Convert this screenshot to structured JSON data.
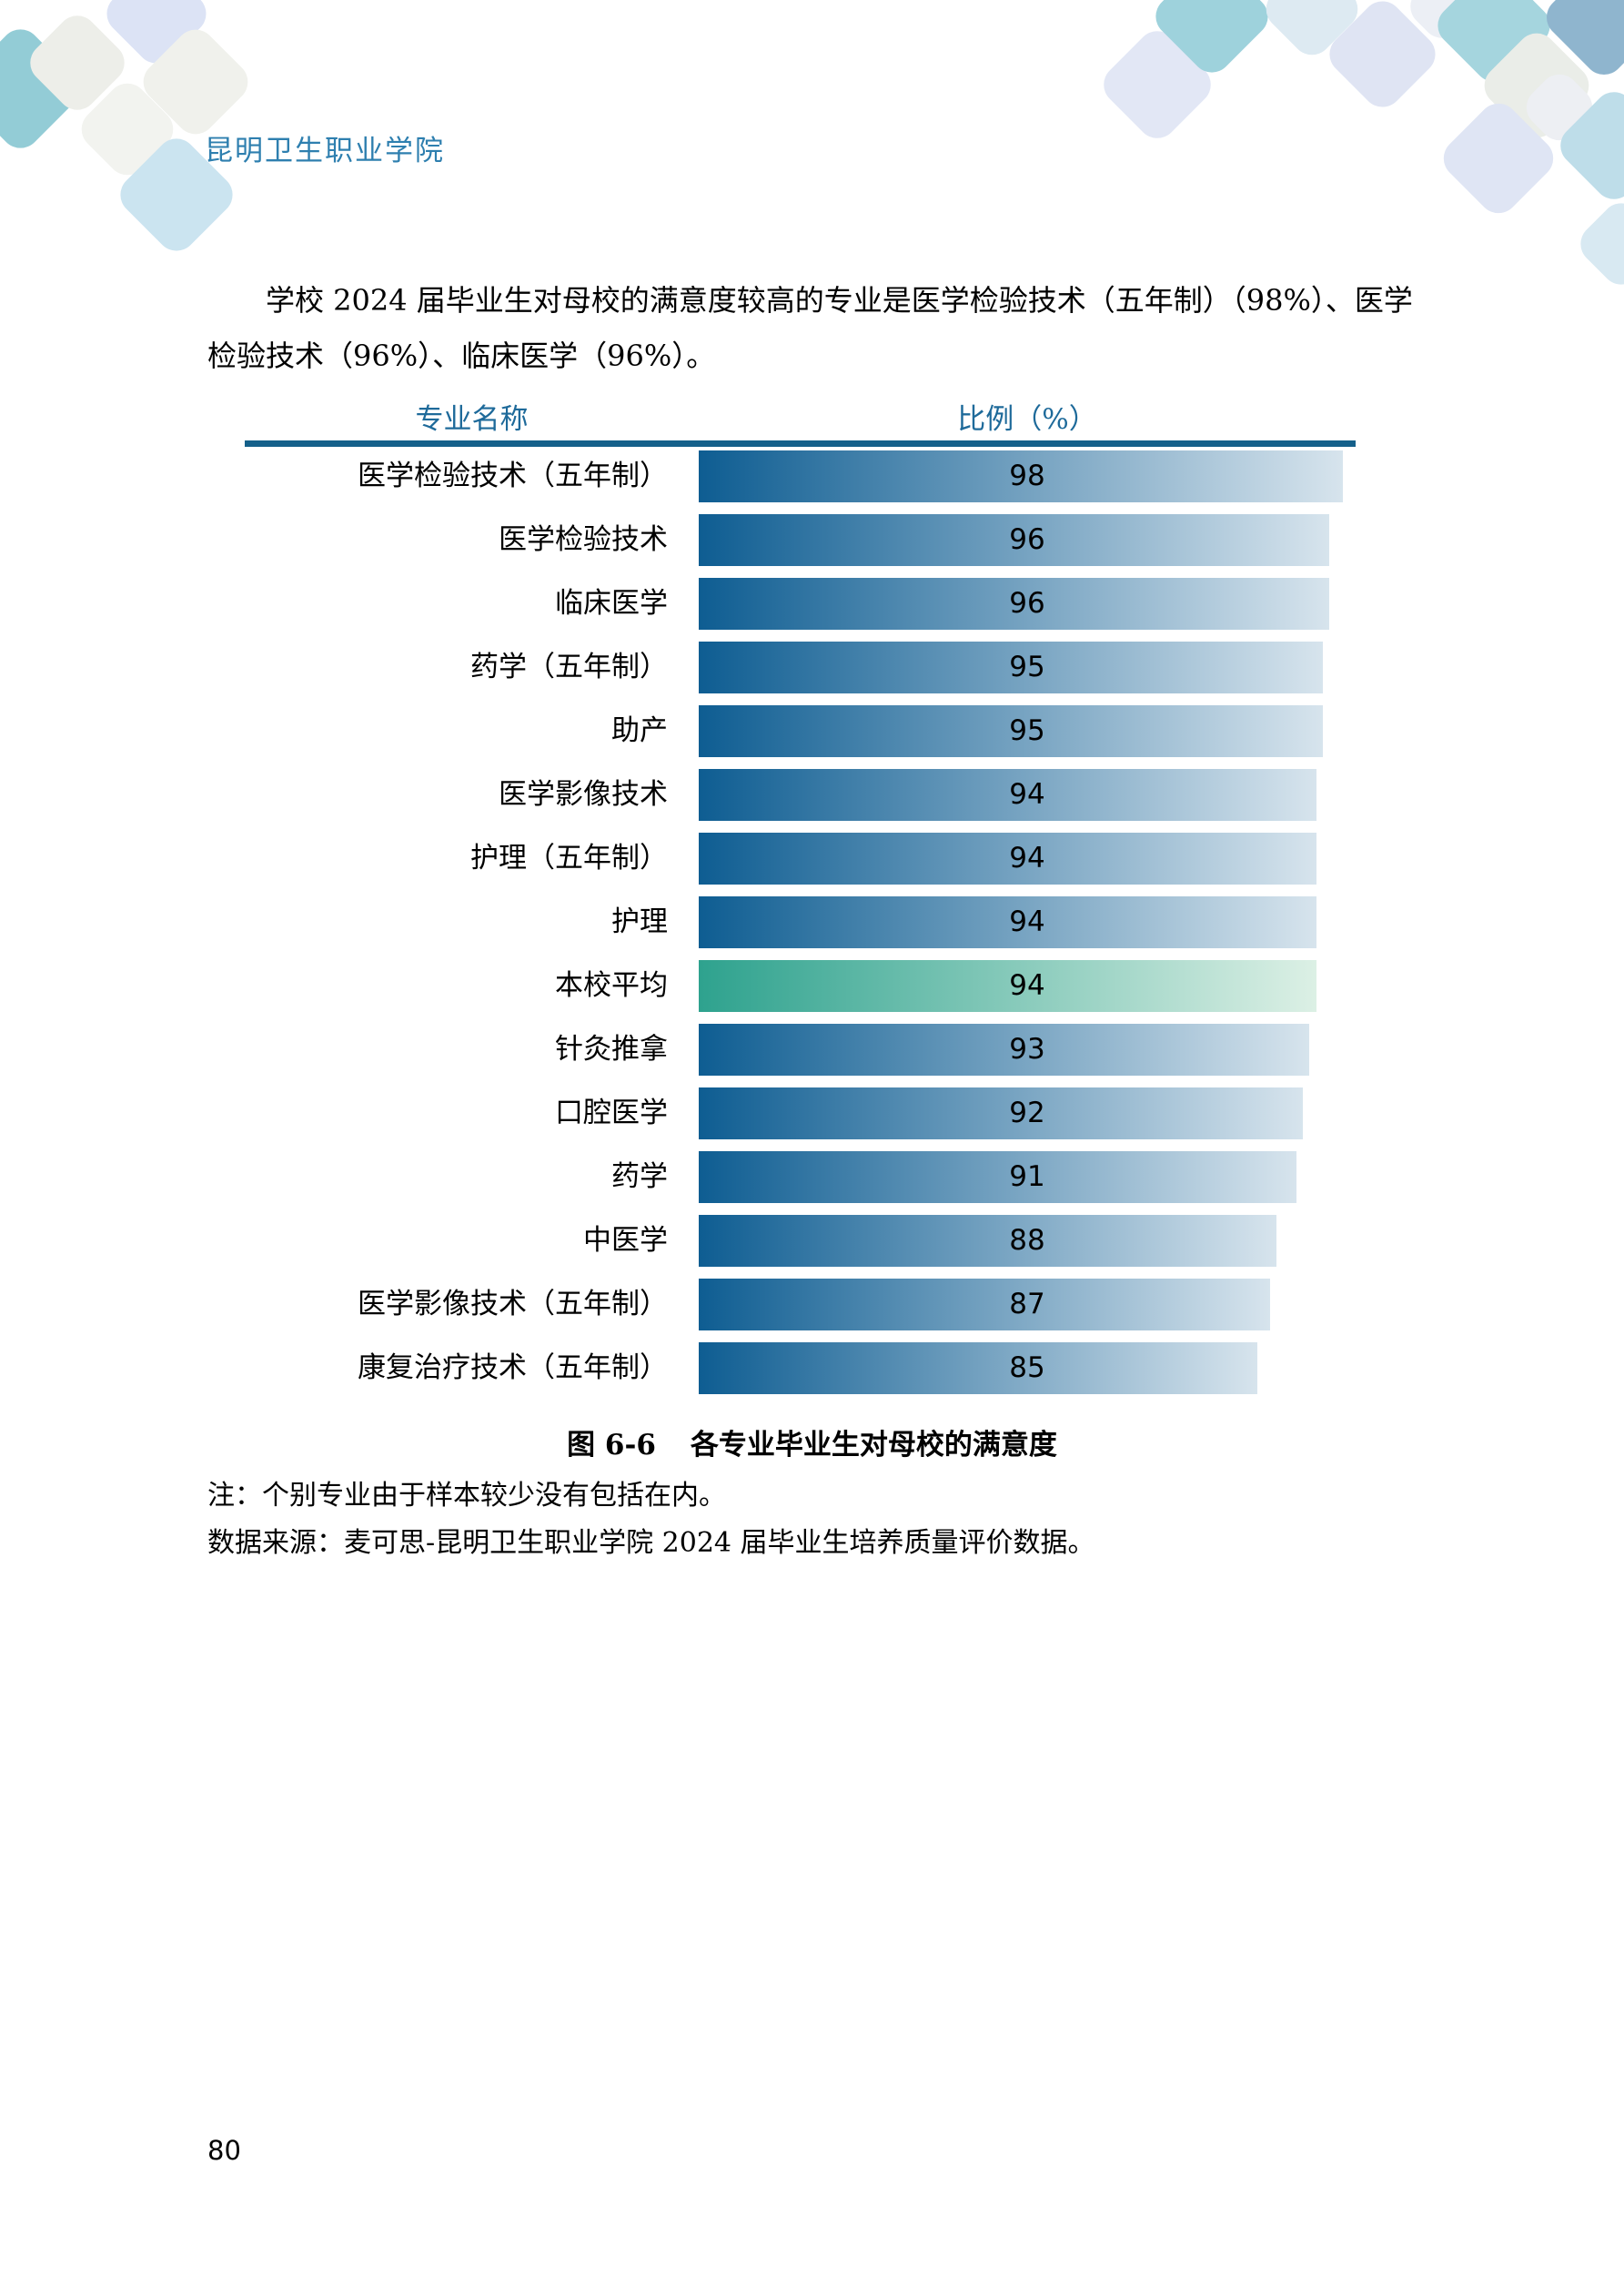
{
  "page": {
    "header_title": "昆明卫生职业学院",
    "page_number": "80"
  },
  "paragraph": {
    "line1": "学校 2024 届毕业生对母校的满意度较高的专业是医学检验技术（五年制）（98%）、医学",
    "line2": "检验技术（96%）、临床医学（96%）。"
  },
  "chart": {
    "col_header_left": "专业名称",
    "col_header_right": "比例（%）"
  },
  "chart_data": {
    "type": "bar",
    "orientation": "horizontal",
    "title": "图 6-6　各专业毕业生对母校的满意度",
    "xlabel": "比例（%）",
    "ylabel": "专业名称",
    "xlim": [
      0,
      100
    ],
    "grid": false,
    "value_labels_shown": true,
    "categories": [
      "医学检验技术（五年制）",
      "医学检验技术",
      "临床医学",
      "药学（五年制）",
      "助产",
      "医学影像技术",
      "护理（五年制）",
      "护理",
      "本校平均",
      "针灸推拿",
      "口腔医学",
      "药学",
      "中医学",
      "医学影像技术（五年制）",
      "康复治疗技术（五年制）"
    ],
    "values": [
      98,
      96,
      96,
      95,
      95,
      94,
      94,
      94,
      94,
      93,
      92,
      91,
      88,
      87,
      85
    ],
    "highlight_category": "本校平均"
  },
  "caption": {
    "label": "图 6-6",
    "text": "各专业毕业生对母校的满意度"
  },
  "notes": {
    "note": "注：个别专业由于样本较少没有包括在内。",
    "source": "数据来源：麦可思-昆明卫生职业学院 2024 届毕业生培养质量评价数据。"
  },
  "colors": {
    "accent_title": "#2E7FAF",
    "column_header_text": "#1E6A9A",
    "rule": "#14608A",
    "bar_gradient_start": "#0E5D92",
    "bar_gradient_end": "#D7E4ED",
    "avg_bar_gradient_start": "#2EA28E",
    "avg_bar_gradient_end": "#DCF0E5"
  }
}
